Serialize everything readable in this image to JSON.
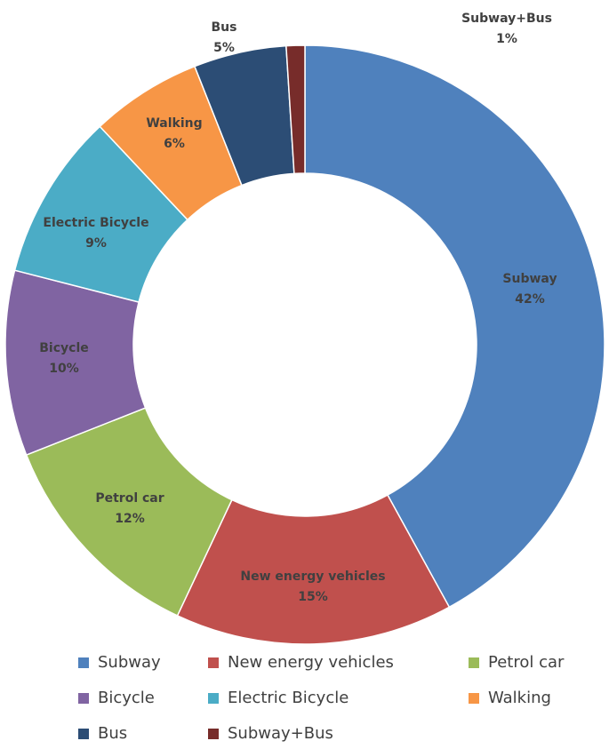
{
  "chart_data": {
    "type": "donut",
    "categories": [
      "Subway",
      "New energy vehicles",
      "Petrol car",
      "Bicycle",
      "Electric Bicycle",
      "Walking",
      "Bus",
      "Subway+Bus"
    ],
    "values": [
      42,
      15,
      12,
      10,
      9,
      6,
      5,
      1
    ],
    "value_labels": [
      "42%",
      "15%",
      "12%",
      "10%",
      "9%",
      "6%",
      "5%",
      "1%"
    ],
    "colors": [
      "#4f81bd",
      "#c0504d",
      "#9bbb59",
      "#8064a2",
      "#4bacc6",
      "#f79646",
      "#2c4d75",
      "#772c2a"
    ],
    "legend": "bottom"
  }
}
